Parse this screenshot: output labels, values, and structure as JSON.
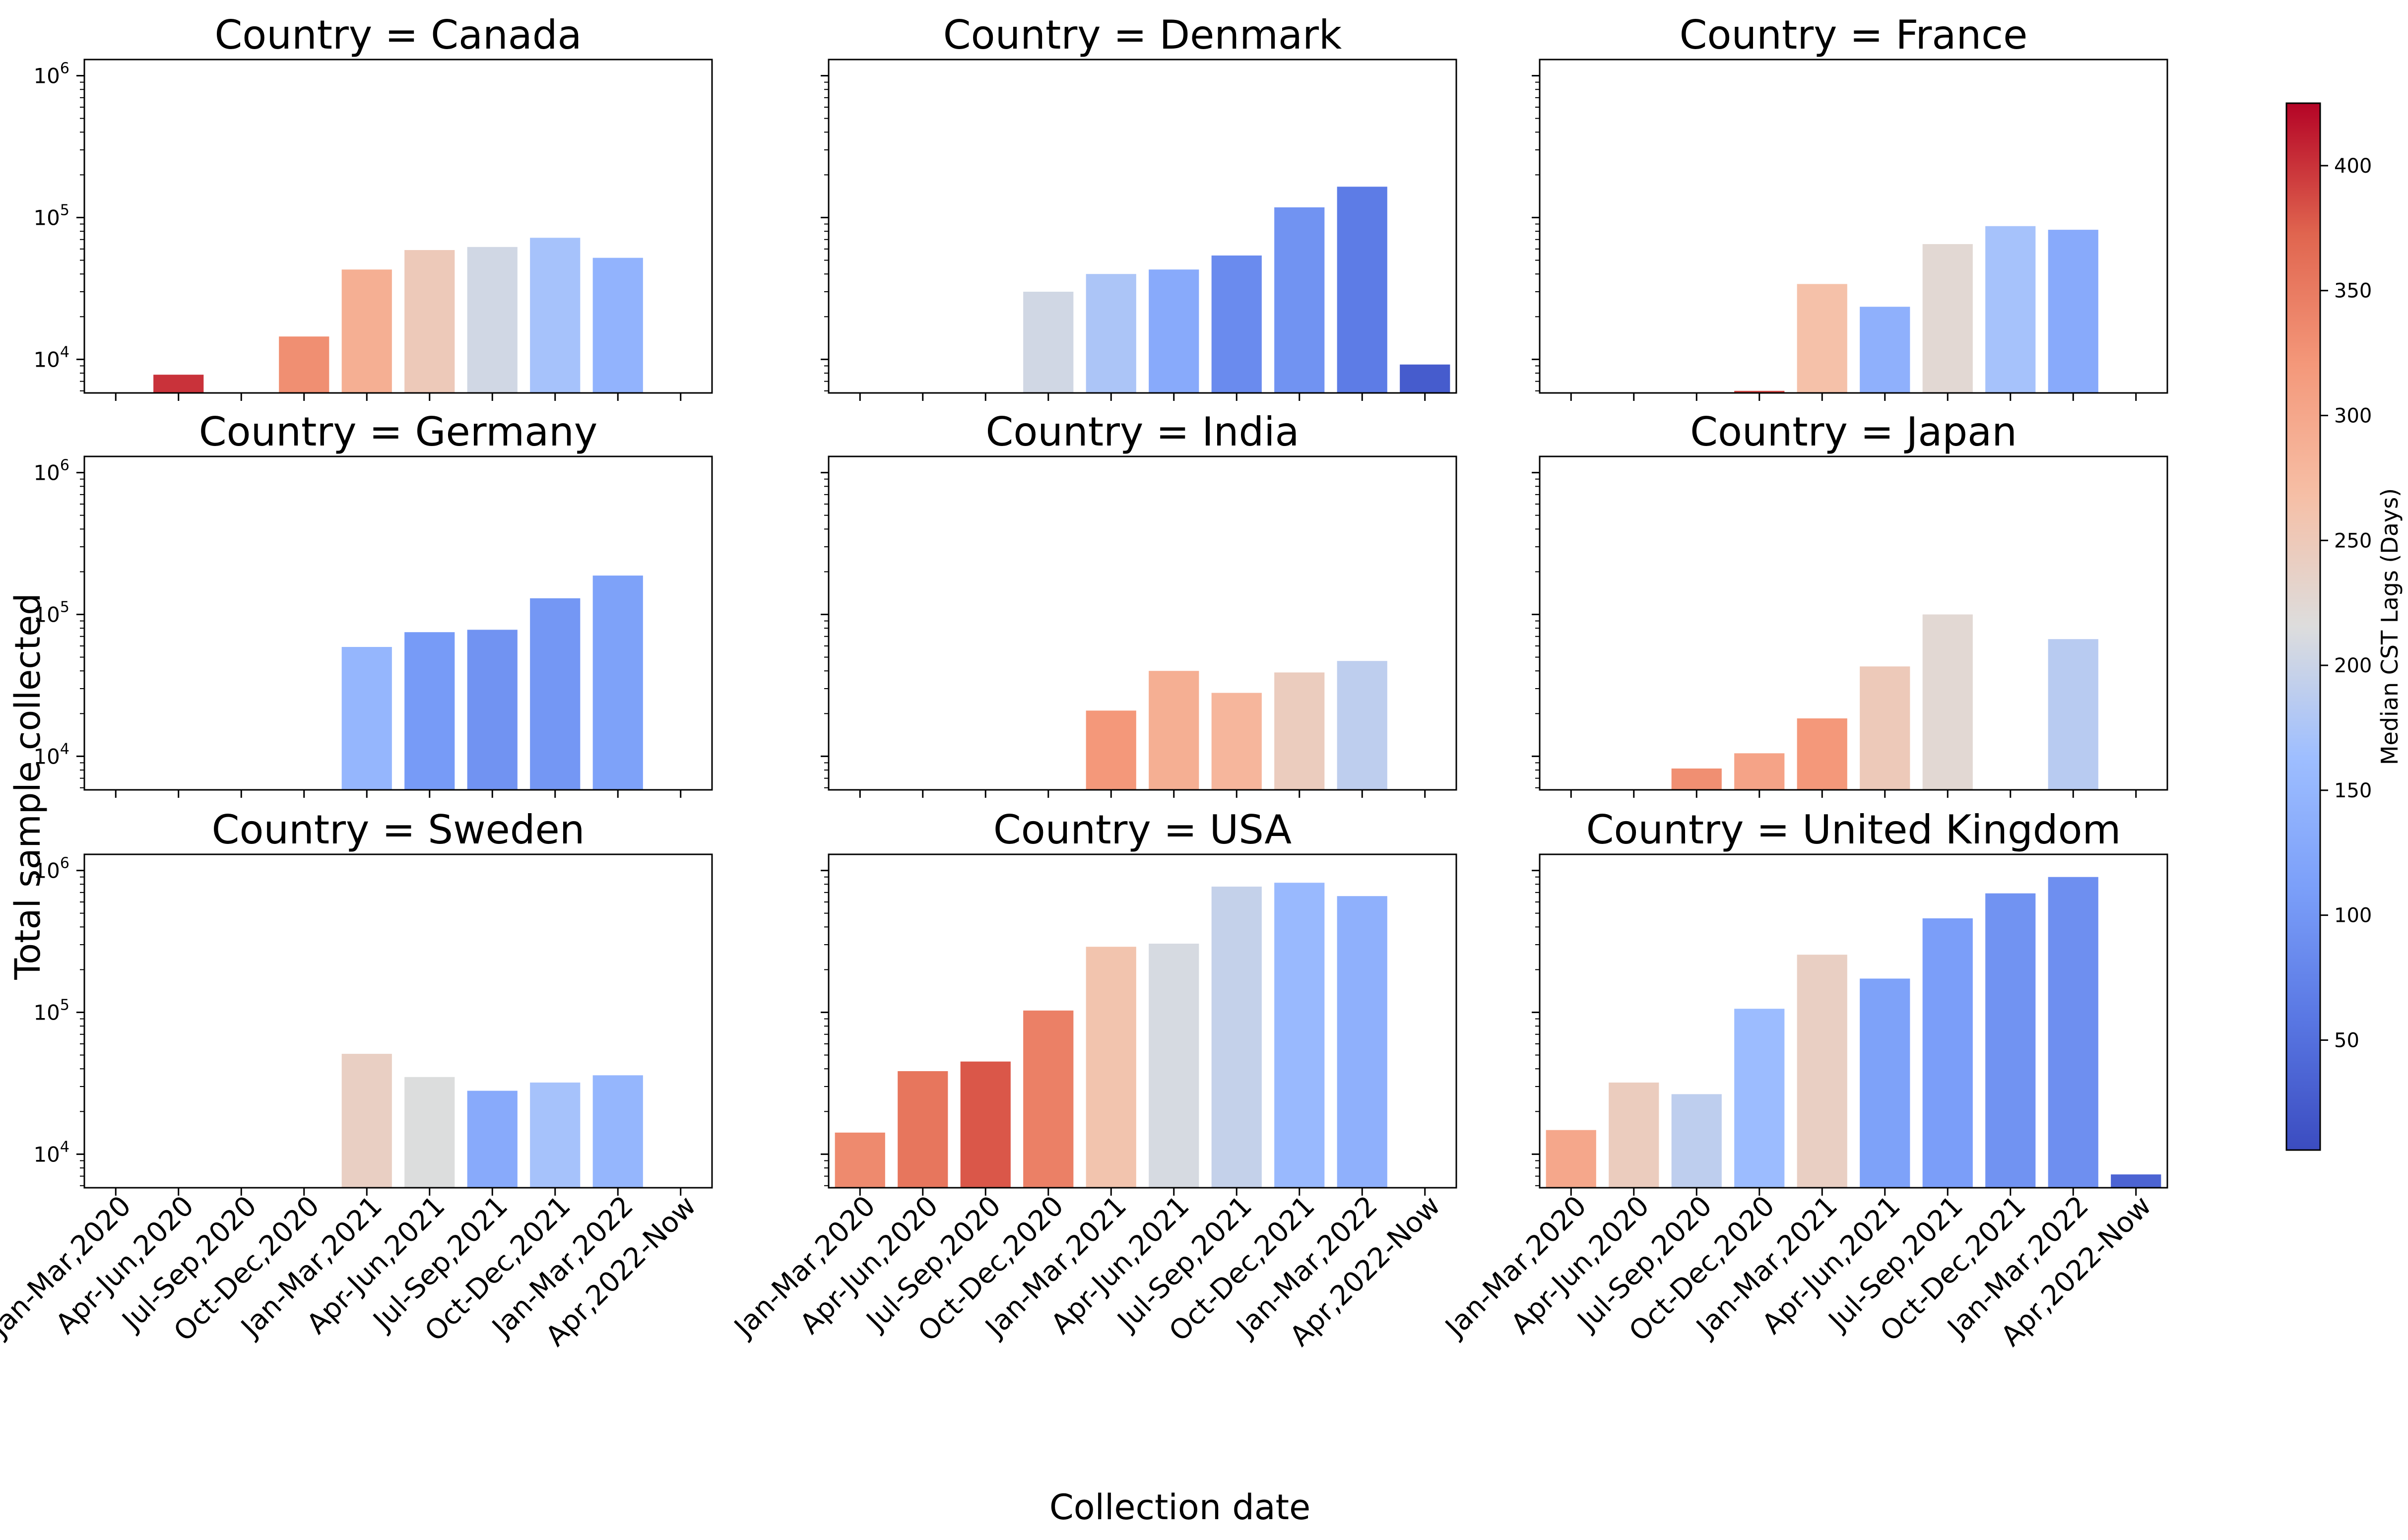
{
  "figure": {
    "ylabel": "Total sample collected",
    "xlabel": "Collection date",
    "colorbar_label": "Median CST Lags (Days)",
    "colorbar_ticks": [
      "50",
      "100",
      "150",
      "200",
      "250",
      "300",
      "350",
      "400"
    ],
    "y_tick_base": "10",
    "y_tick_exponents": [
      "4",
      "5",
      "6"
    ]
  },
  "chart_data": {
    "type": "bar",
    "layout": "3x3 facet grid, shared x and y axes",
    "yscale": "log",
    "ylim": [
      5800,
      1300000
    ],
    "color_scale": {
      "name": "coolwarm",
      "min": 6,
      "max": 425,
      "variable": "Median CST Lags (Days)"
    },
    "categories": [
      "Jan-Mar,2020",
      "Apr-Jun,2020",
      "Jul-Sep,2020",
      "Oct-Dec,2020",
      "Jan-Mar,2021",
      "Apr-Jun,2021",
      "Jul-Sep,2021",
      "Oct-Dec,2021",
      "Jan-Mar,2022",
      "Apr,2022-Now"
    ],
    "panels": [
      {
        "title": "Country = Canada",
        "values": [
          null,
          7800,
          null,
          14500,
          43000,
          59000,
          62000,
          72000,
          52000,
          null
        ],
        "lags": [
          null,
          400,
          null,
          330,
          290,
          250,
          205,
          170,
          145,
          null
        ]
      },
      {
        "title": "Country = Denmark",
        "values": [
          null,
          null,
          null,
          30000,
          40000,
          43000,
          54000,
          118000,
          165000,
          9200
        ],
        "lags": [
          null,
          null,
          null,
          205,
          175,
          130,
          85,
          95,
          65,
          25
        ]
      },
      {
        "title": "Country = France",
        "values": [
          null,
          null,
          null,
          6000,
          34000,
          23500,
          65000,
          87000,
          82000,
          null
        ],
        "lags": [
          null,
          null,
          null,
          390,
          265,
          140,
          225,
          170,
          130,
          null
        ]
      },
      {
        "title": "Country = Germany",
        "values": [
          null,
          null,
          null,
          null,
          59000,
          75000,
          78000,
          130000,
          188000,
          null
        ],
        "lags": [
          null,
          null,
          null,
          null,
          150,
          105,
          95,
          100,
          115,
          null
        ]
      },
      {
        "title": "Country = India",
        "values": [
          null,
          null,
          null,
          null,
          21000,
          40000,
          28000,
          39000,
          47000,
          null
        ],
        "lags": [
          null,
          null,
          null,
          null,
          320,
          290,
          280,
          245,
          190,
          null
        ]
      },
      {
        "title": "Country = Japan",
        "values": [
          null,
          null,
          8200,
          10500,
          18500,
          43000,
          100000,
          null,
          67000,
          null
        ],
        "lags": [
          null,
          null,
          330,
          305,
          320,
          250,
          225,
          null,
          185,
          null
        ]
      },
      {
        "title": "Country = Sweden",
        "values": [
          null,
          null,
          null,
          null,
          51000,
          35000,
          28000,
          32000,
          36000,
          null
        ],
        "lags": [
          null,
          null,
          null,
          null,
          240,
          215,
          130,
          170,
          150,
          null
        ]
      },
      {
        "title": "Country = USA",
        "values": [
          14200,
          38500,
          45000,
          103000,
          290000,
          305000,
          770000,
          820000,
          660000,
          null
        ],
        "lags": [
          335,
          355,
          380,
          345,
          260,
          210,
          195,
          155,
          140,
          null
        ]
      },
      {
        "title": "Country = United Kingdom",
        "values": [
          14800,
          32000,
          26500,
          106000,
          255000,
          173000,
          460000,
          690000,
          900000,
          7200
        ],
        "lags": [
          300,
          245,
          190,
          160,
          240,
          115,
          110,
          95,
          90,
          35
        ]
      }
    ]
  }
}
